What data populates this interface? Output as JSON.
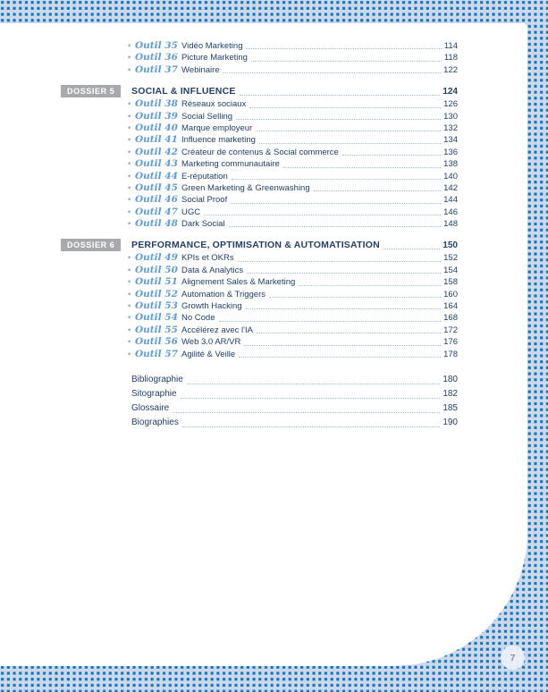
{
  "page": {
    "number": "7"
  },
  "colors": {
    "pattern_dot": "#0b75bc",
    "pattern_bg": "#cdd8ec",
    "text_navy": "#234069",
    "script_blue": "#5f9cd6",
    "badge_bg": "#a7a9ac",
    "leader_dot": "#a4bcd8",
    "page_circle_bg": "#ecf0f9",
    "page_number_gray": "#8e8f96"
  },
  "toc": {
    "pre_items": [
      {
        "tool": "Outil 35",
        "title": "Vidéo Marketing",
        "page": "114"
      },
      {
        "tool": "Outil 36",
        "title": "Picture Marketing",
        "page": "118"
      },
      {
        "tool": "Outil 37",
        "title": "Webinaire",
        "page": "122"
      }
    ],
    "sections": [
      {
        "badge": "DOSSIER 5",
        "title": "SOCIAL & INFLUENCE",
        "page": "124",
        "items": [
          {
            "tool": "Outil 38",
            "title": "Réseaux sociaux",
            "page": "126"
          },
          {
            "tool": "Outil 39",
            "title": "Social Selling",
            "page": "130"
          },
          {
            "tool": "Outil 40",
            "title": "Marque employeur",
            "page": "132"
          },
          {
            "tool": "Outil 41",
            "title": "Influence marketing",
            "page": "134"
          },
          {
            "tool": "Outil 42",
            "title": "Créateur de contenus & Social commerce",
            "page": "136"
          },
          {
            "tool": "Outil 43",
            "title": "Marketing communautaire",
            "page": "138"
          },
          {
            "tool": "Outil 44",
            "title": "E-réputation",
            "page": "140"
          },
          {
            "tool": "Outil 45",
            "title": "Green Marketing & Greenwashing",
            "page": "142"
          },
          {
            "tool": "Outil 46",
            "title": "Social Proof",
            "page": "144"
          },
          {
            "tool": "Outil 47",
            "title": "UGC",
            "page": "146"
          },
          {
            "tool": "Outil 48",
            "title": "Dark Social",
            "page": "148"
          }
        ]
      },
      {
        "badge": "DOSSIER 6",
        "title": "PERFORMANCE, OPTIMISATION & AUTOMATISATION",
        "page": "150",
        "items": [
          {
            "tool": "Outil 49",
            "title": "KPIs et OKRs",
            "page": "152"
          },
          {
            "tool": "Outil 50",
            "title": "Data & Analytics",
            "page": "154"
          },
          {
            "tool": "Outil 51",
            "title": "Alignement Sales & Marketing",
            "page": "158"
          },
          {
            "tool": "Outil 52",
            "title": "Automation & Triggers",
            "page": "160"
          },
          {
            "tool": "Outil 53",
            "title": "Growth Hacking",
            "page": "164"
          },
          {
            "tool": "Outil 54",
            "title": "No Code",
            "page": "168"
          },
          {
            "tool": "Outil 55",
            "title": "Accélérez avec l'IA",
            "page": "172"
          },
          {
            "tool": "Outil 56",
            "title": "Web 3.0 AR/VR",
            "page": "176"
          },
          {
            "tool": "Outil 57",
            "title": "Agilité & Veille",
            "page": "178"
          }
        ]
      }
    ],
    "end_matter": [
      {
        "title": "Bibliographie",
        "page": "180"
      },
      {
        "title": "Sitographie",
        "page": "182"
      },
      {
        "title": "Glossaire",
        "page": "185"
      },
      {
        "title": "Biographies",
        "page": "190"
      }
    ]
  }
}
